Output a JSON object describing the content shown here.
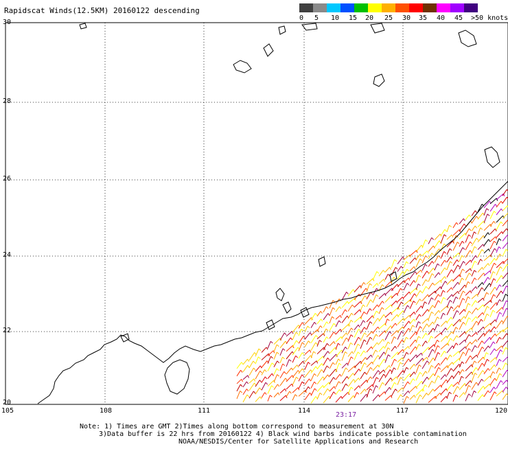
{
  "title": "Rapidscat Winds(12.5KM) 20160122 descending",
  "legend": {
    "colors": [
      "#404040",
      "#8a8a8a",
      "#00c8ff",
      "#0050ff",
      "#00c000",
      "#ffff00",
      "#ffb000",
      "#ff5000",
      "#ff0000",
      "#703000",
      "#ff00ff",
      "#a000ff",
      "#400080"
    ],
    "labels": [
      "0",
      "5",
      "10",
      "15",
      "20",
      "25",
      "30",
      "35",
      "40",
      "45",
      ">50 knots"
    ]
  },
  "map": {
    "lat_labels": [
      "30",
      "28",
      "26",
      "24",
      "22",
      "20"
    ],
    "lon_labels": [
      "105",
      "108",
      "111",
      "114",
      "117",
      "120"
    ]
  },
  "time_label": "23:17",
  "notes": {
    "line1": "Note: 1) Times are GMT 2)Times along bottom correspond to measurement at 30N",
    "line2": "3)Data buffer is 22 hrs from 20160122 4) Black wind barbs indicate possible contamination",
    "line3": "NOAA/NESDIS/Center for Satellite Applications and Research"
  }
}
